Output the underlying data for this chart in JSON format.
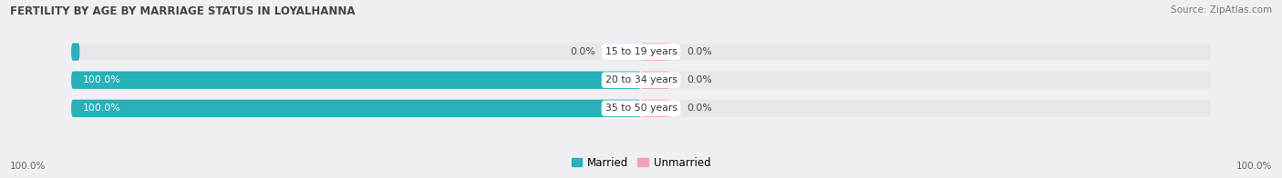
{
  "title": "FERTILITY BY AGE BY MARRIAGE STATUS IN LOYALHANNA",
  "source": "Source: ZipAtlas.com",
  "categories": [
    "15 to 19 years",
    "20 to 34 years",
    "35 to 50 years"
  ],
  "married_values": [
    0.0,
    100.0,
    100.0
  ],
  "unmarried_values": [
    0.0,
    0.0,
    0.0
  ],
  "married_color": "#2ab0b8",
  "unmarried_color": "#f4a0b5",
  "bar_bg_color": "#e8e8ec",
  "bar_height": 0.62,
  "title_fontsize": 8.5,
  "label_fontsize": 7.8,
  "tick_fontsize": 7.5,
  "source_fontsize": 7.5,
  "legend_fontsize": 8.5,
  "x_left_label": "100.0%",
  "x_right_label": "100.0%",
  "fig_bg_color": "#f0f0f4",
  "center_label_bg": "white",
  "value_label_left_color": "white",
  "value_label_right_color": "#555555"
}
